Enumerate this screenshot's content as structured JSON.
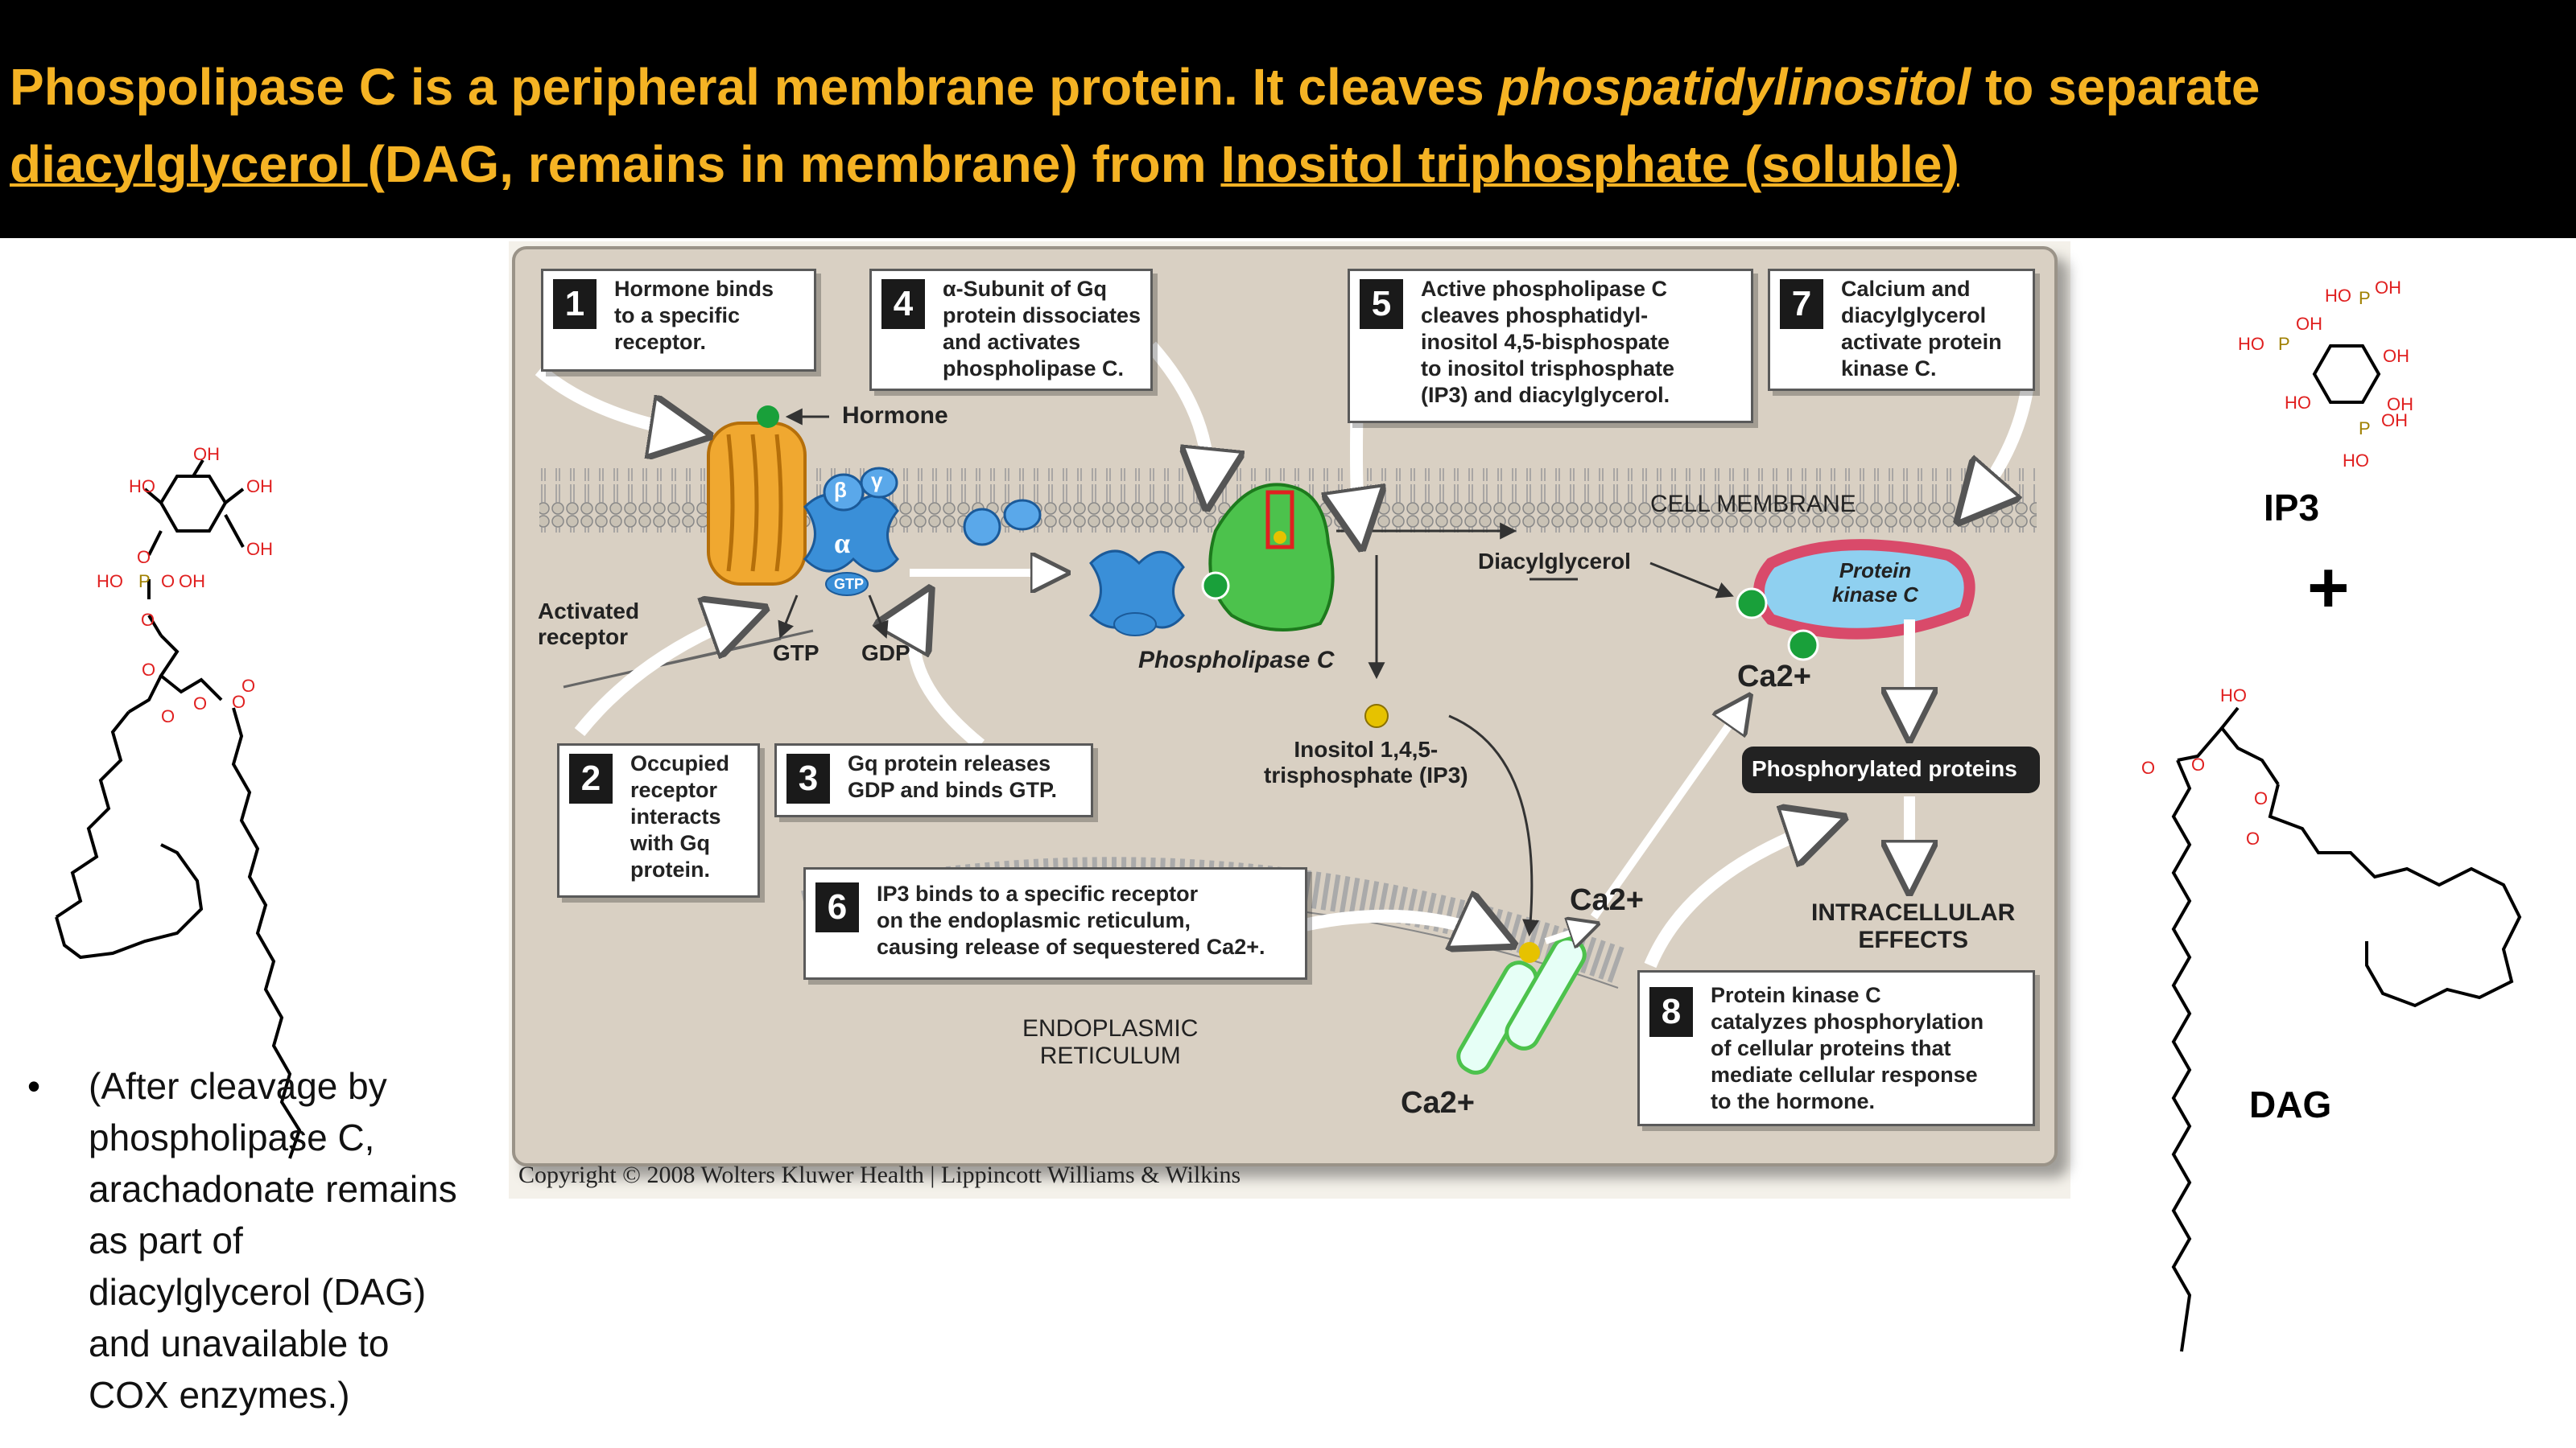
{
  "title": {
    "part1": "Phospolipase C is a peripheral membrane protein.  It cleaves ",
    "part2_italic": "phospatidylinositol",
    "part3": " to separate",
    "part4_underline": "diacylglycerol ",
    "part5": "(DAG, remains in membrane) from ",
    "part6_underline": "Inositol triphosphate (soluble)"
  },
  "figure": {
    "steps": [
      {
        "num": "1",
        "text": "Hormone binds\nto a specific\nreceptor."
      },
      {
        "num": "2",
        "text": "Occupied\nreceptor\ninteracts\nwith Gq\nprotein."
      },
      {
        "num": "3",
        "text": "Gq protein releases\nGDP and binds GTP."
      },
      {
        "num": "4",
        "text": "α-Subunit of Gq\nprotein dissociates\nand activates\nphospholipase C."
      },
      {
        "num": "5",
        "text": "Active phospholipase C\ncleaves phosphatidyl-\ninositol 4,5-bisphospate\nto inositol trisphosphate\n(IP3) and diacylglycerol."
      },
      {
        "num": "6",
        "text": "IP3 binds to a specific receptor\non the endoplasmic reticulum,\ncausing release of sequestered Ca2+."
      },
      {
        "num": "7",
        "text": "Calcium and\ndiacylglycerol\nactivate protein\nkinase C."
      },
      {
        "num": "8",
        "text": "Protein kinase C\ncatalyzes phosphorylation\nof cellular proteins that\nmediate cellular response\nto the hormone."
      }
    ],
    "labels": {
      "hormone": "Hormone",
      "activated_receptor": "Activated\nreceptor",
      "gtp": "GTP",
      "gdp": "GDP",
      "alpha": "α",
      "beta": "β",
      "gamma": "γ",
      "gtp_small": "GTP",
      "phospholipase_c": "Phospholipase C",
      "cell_membrane": "CELL MEMBRANE",
      "diacylglycerol": "Diacylglycerol",
      "protein_kinase_c": "Protein\nkinase C",
      "ca_a": "Ca2+",
      "ca_b": "Ca2+",
      "ca_c": "Ca2+",
      "ip3": "Inositol 1,4,5-\ntrisphosphate (IP3)",
      "phosphorylated_proteins": "Phosphorylated proteins",
      "intracellular_effects": "INTRACELLULAR\nEFFECTS",
      "er": "ENDOPLASMIC\nRETICULUM"
    },
    "copyright": "Copyright © 2008 Wolters Kluwer Health | Lippincott Williams & Wilkins"
  },
  "bullet": "(After cleavage by\nphospholipase C,\narachadonate remains\nas part of\ndiacylglycerol (DAG)\nand unavailable to\nCOX enzymes.)",
  "right": {
    "ip3_label": "IP3",
    "plus": "+",
    "dag_label": "DAG"
  },
  "colors": {
    "title_text": "#f5b324",
    "figure_bg": "#d9d0c3",
    "receptor": "#f0a830",
    "g_protein": "#3a8fd8",
    "plc": "#4cc24c",
    "pkc": "#d94a6a",
    "chem_red": "#e02020"
  }
}
